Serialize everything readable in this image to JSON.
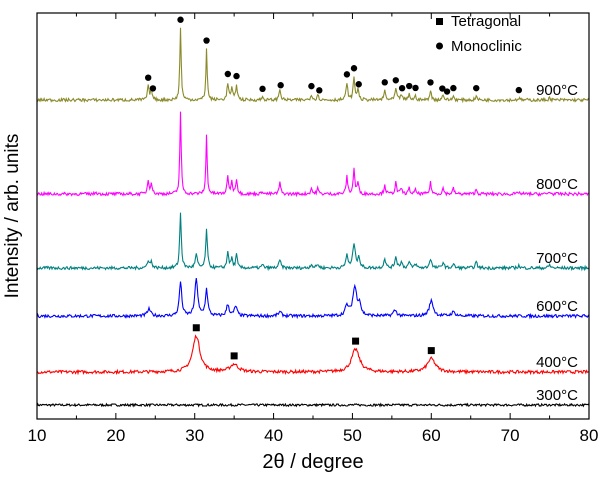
{
  "chart_data": {
    "type": "line",
    "title": "",
    "xlabel": "2θ / degree",
    "ylabel": "Intensity / arb. units",
    "xlim": [
      10,
      80
    ],
    "x_ticks": [
      "10",
      "20",
      "30",
      "40",
      "50",
      "60",
      "70",
      "80"
    ],
    "y_ticks_shown": false,
    "legend": {
      "placement": "top-right",
      "entries": [
        {
          "marker": "square",
          "label": "Tetragonal"
        },
        {
          "marker": "circle",
          "label": "Monoclinic"
        }
      ]
    },
    "series": [
      {
        "name": "300°C",
        "label": "300°C",
        "color": "#000000",
        "baseline": 0.0,
        "noise": 0.03,
        "peaks": []
      },
      {
        "name": "400°C",
        "label": "400°C",
        "color": "#ff0000",
        "baseline": 1.0,
        "noise": 0.04,
        "peaks": [
          [
            30.2,
            0.95,
            0.55
          ],
          [
            35.0,
            0.2,
            0.6
          ],
          [
            50.4,
            0.6,
            0.6
          ],
          [
            60.0,
            0.35,
            0.6
          ]
        ]
      },
      {
        "name": "600°C",
        "label": "600°C",
        "color": "#0000ff",
        "baseline": 2.0,
        "noise": 0.04,
        "peaks": [
          [
            24.2,
            0.18,
            0.25
          ],
          [
            28.2,
            0.9,
            0.18
          ],
          [
            30.2,
            1.0,
            0.2
          ],
          [
            31.5,
            0.7,
            0.18
          ],
          [
            34.2,
            0.3,
            0.2
          ],
          [
            35.2,
            0.25,
            0.2
          ],
          [
            40.8,
            0.1,
            0.25
          ],
          [
            49.3,
            0.25,
            0.25
          ],
          [
            50.3,
            0.75,
            0.3
          ],
          [
            50.9,
            0.3,
            0.2
          ],
          [
            55.4,
            0.15,
            0.25
          ],
          [
            60.0,
            0.4,
            0.3
          ],
          [
            62.8,
            0.1,
            0.3
          ]
        ]
      },
      {
        "name": "700°C",
        "label": "700°C",
        "color": "#008080",
        "baseline": 3.0,
        "noise": 0.04,
        "peaks": [
          [
            24.1,
            0.2,
            0.15
          ],
          [
            24.5,
            0.15,
            0.15
          ],
          [
            28.2,
            1.45,
            0.12
          ],
          [
            30.2,
            0.35,
            0.15
          ],
          [
            31.5,
            1.05,
            0.12
          ],
          [
            34.2,
            0.45,
            0.12
          ],
          [
            34.7,
            0.25,
            0.12
          ],
          [
            35.3,
            0.35,
            0.12
          ],
          [
            38.6,
            0.08,
            0.15
          ],
          [
            40.8,
            0.2,
            0.15
          ],
          [
            44.8,
            0.1,
            0.15
          ],
          [
            45.6,
            0.1,
            0.15
          ],
          [
            49.3,
            0.35,
            0.15
          ],
          [
            50.2,
            0.65,
            0.18
          ],
          [
            50.8,
            0.3,
            0.15
          ],
          [
            54.1,
            0.25,
            0.15
          ],
          [
            55.5,
            0.3,
            0.15
          ],
          [
            56.2,
            0.15,
            0.15
          ],
          [
            57.2,
            0.15,
            0.15
          ],
          [
            58.0,
            0.1,
            0.15
          ],
          [
            59.9,
            0.25,
            0.15
          ],
          [
            61.5,
            0.15,
            0.15
          ],
          [
            62.8,
            0.1,
            0.15
          ],
          [
            65.7,
            0.15,
            0.15
          ],
          [
            71.1,
            0.06,
            0.15
          ],
          [
            75.0,
            0.08,
            0.15
          ]
        ]
      },
      {
        "name": "800°C",
        "label": "800°C",
        "color": "#ff00ff",
        "baseline": 4.0,
        "noise": 0.04,
        "peaks": [
          [
            24.1,
            0.35,
            0.12
          ],
          [
            24.5,
            0.3,
            0.12
          ],
          [
            28.2,
            2.15,
            0.1
          ],
          [
            31.5,
            1.55,
            0.1
          ],
          [
            34.2,
            0.45,
            0.12
          ],
          [
            34.7,
            0.3,
            0.12
          ],
          [
            35.3,
            0.4,
            0.12
          ],
          [
            38.6,
            0.08,
            0.12
          ],
          [
            40.8,
            0.3,
            0.12
          ],
          [
            44.8,
            0.15,
            0.12
          ],
          [
            45.6,
            0.15,
            0.12
          ],
          [
            49.3,
            0.45,
            0.12
          ],
          [
            50.2,
            0.65,
            0.12
          ],
          [
            50.7,
            0.3,
            0.12
          ],
          [
            54.1,
            0.25,
            0.12
          ],
          [
            55.5,
            0.3,
            0.12
          ],
          [
            56.2,
            0.15,
            0.12
          ],
          [
            57.2,
            0.15,
            0.12
          ],
          [
            58.0,
            0.1,
            0.12
          ],
          [
            59.9,
            0.3,
            0.12
          ],
          [
            61.5,
            0.15,
            0.12
          ],
          [
            62.8,
            0.15,
            0.12
          ],
          [
            65.7,
            0.12,
            0.12
          ],
          [
            71.1,
            0.05,
            0.12
          ],
          [
            75.0,
            0.06,
            0.12
          ],
          [
            17.5,
            0.05,
            0.15
          ]
        ]
      },
      {
        "name": "900°C",
        "label": "900°C",
        "color": "#8a8a2a",
        "baseline": 5.0,
        "noise": 0.04,
        "peaks": [
          [
            24.1,
            0.35,
            0.12
          ],
          [
            24.5,
            0.3,
            0.12
          ],
          [
            28.2,
            1.9,
            0.1
          ],
          [
            31.5,
            1.35,
            0.1
          ],
          [
            34.2,
            0.45,
            0.12
          ],
          [
            34.7,
            0.3,
            0.12
          ],
          [
            35.3,
            0.4,
            0.12
          ],
          [
            38.6,
            0.08,
            0.12
          ],
          [
            40.8,
            0.3,
            0.12
          ],
          [
            44.8,
            0.15,
            0.12
          ],
          [
            45.6,
            0.15,
            0.12
          ],
          [
            49.3,
            0.45,
            0.12
          ],
          [
            50.2,
            0.6,
            0.12
          ],
          [
            50.7,
            0.3,
            0.12
          ],
          [
            54.1,
            0.25,
            0.12
          ],
          [
            55.5,
            0.3,
            0.12
          ],
          [
            56.2,
            0.15,
            0.12
          ],
          [
            57.2,
            0.15,
            0.12
          ],
          [
            58.0,
            0.1,
            0.12
          ],
          [
            59.9,
            0.25,
            0.12
          ],
          [
            61.5,
            0.15,
            0.12
          ],
          [
            62.8,
            0.1,
            0.12
          ],
          [
            65.7,
            0.1,
            0.12
          ],
          [
            71.1,
            0.05,
            0.12
          ],
          [
            75.0,
            0.06,
            0.12
          ]
        ]
      }
    ],
    "markers": [
      {
        "series": "400°C",
        "shape": "square",
        "x": [
          30.2,
          35.0,
          50.4,
          60.0
        ]
      },
      {
        "series": "900°C",
        "shape": "circle",
        "x": [
          24.1,
          24.7,
          28.2,
          31.5,
          34.2,
          35.3,
          38.6,
          40.9,
          44.8,
          45.8,
          49.3,
          50.2,
          50.8,
          54.1,
          55.5,
          56.3,
          57.2,
          58.0,
          59.9,
          61.4,
          62.0,
          62.8,
          65.7,
          71.1
        ]
      }
    ]
  }
}
